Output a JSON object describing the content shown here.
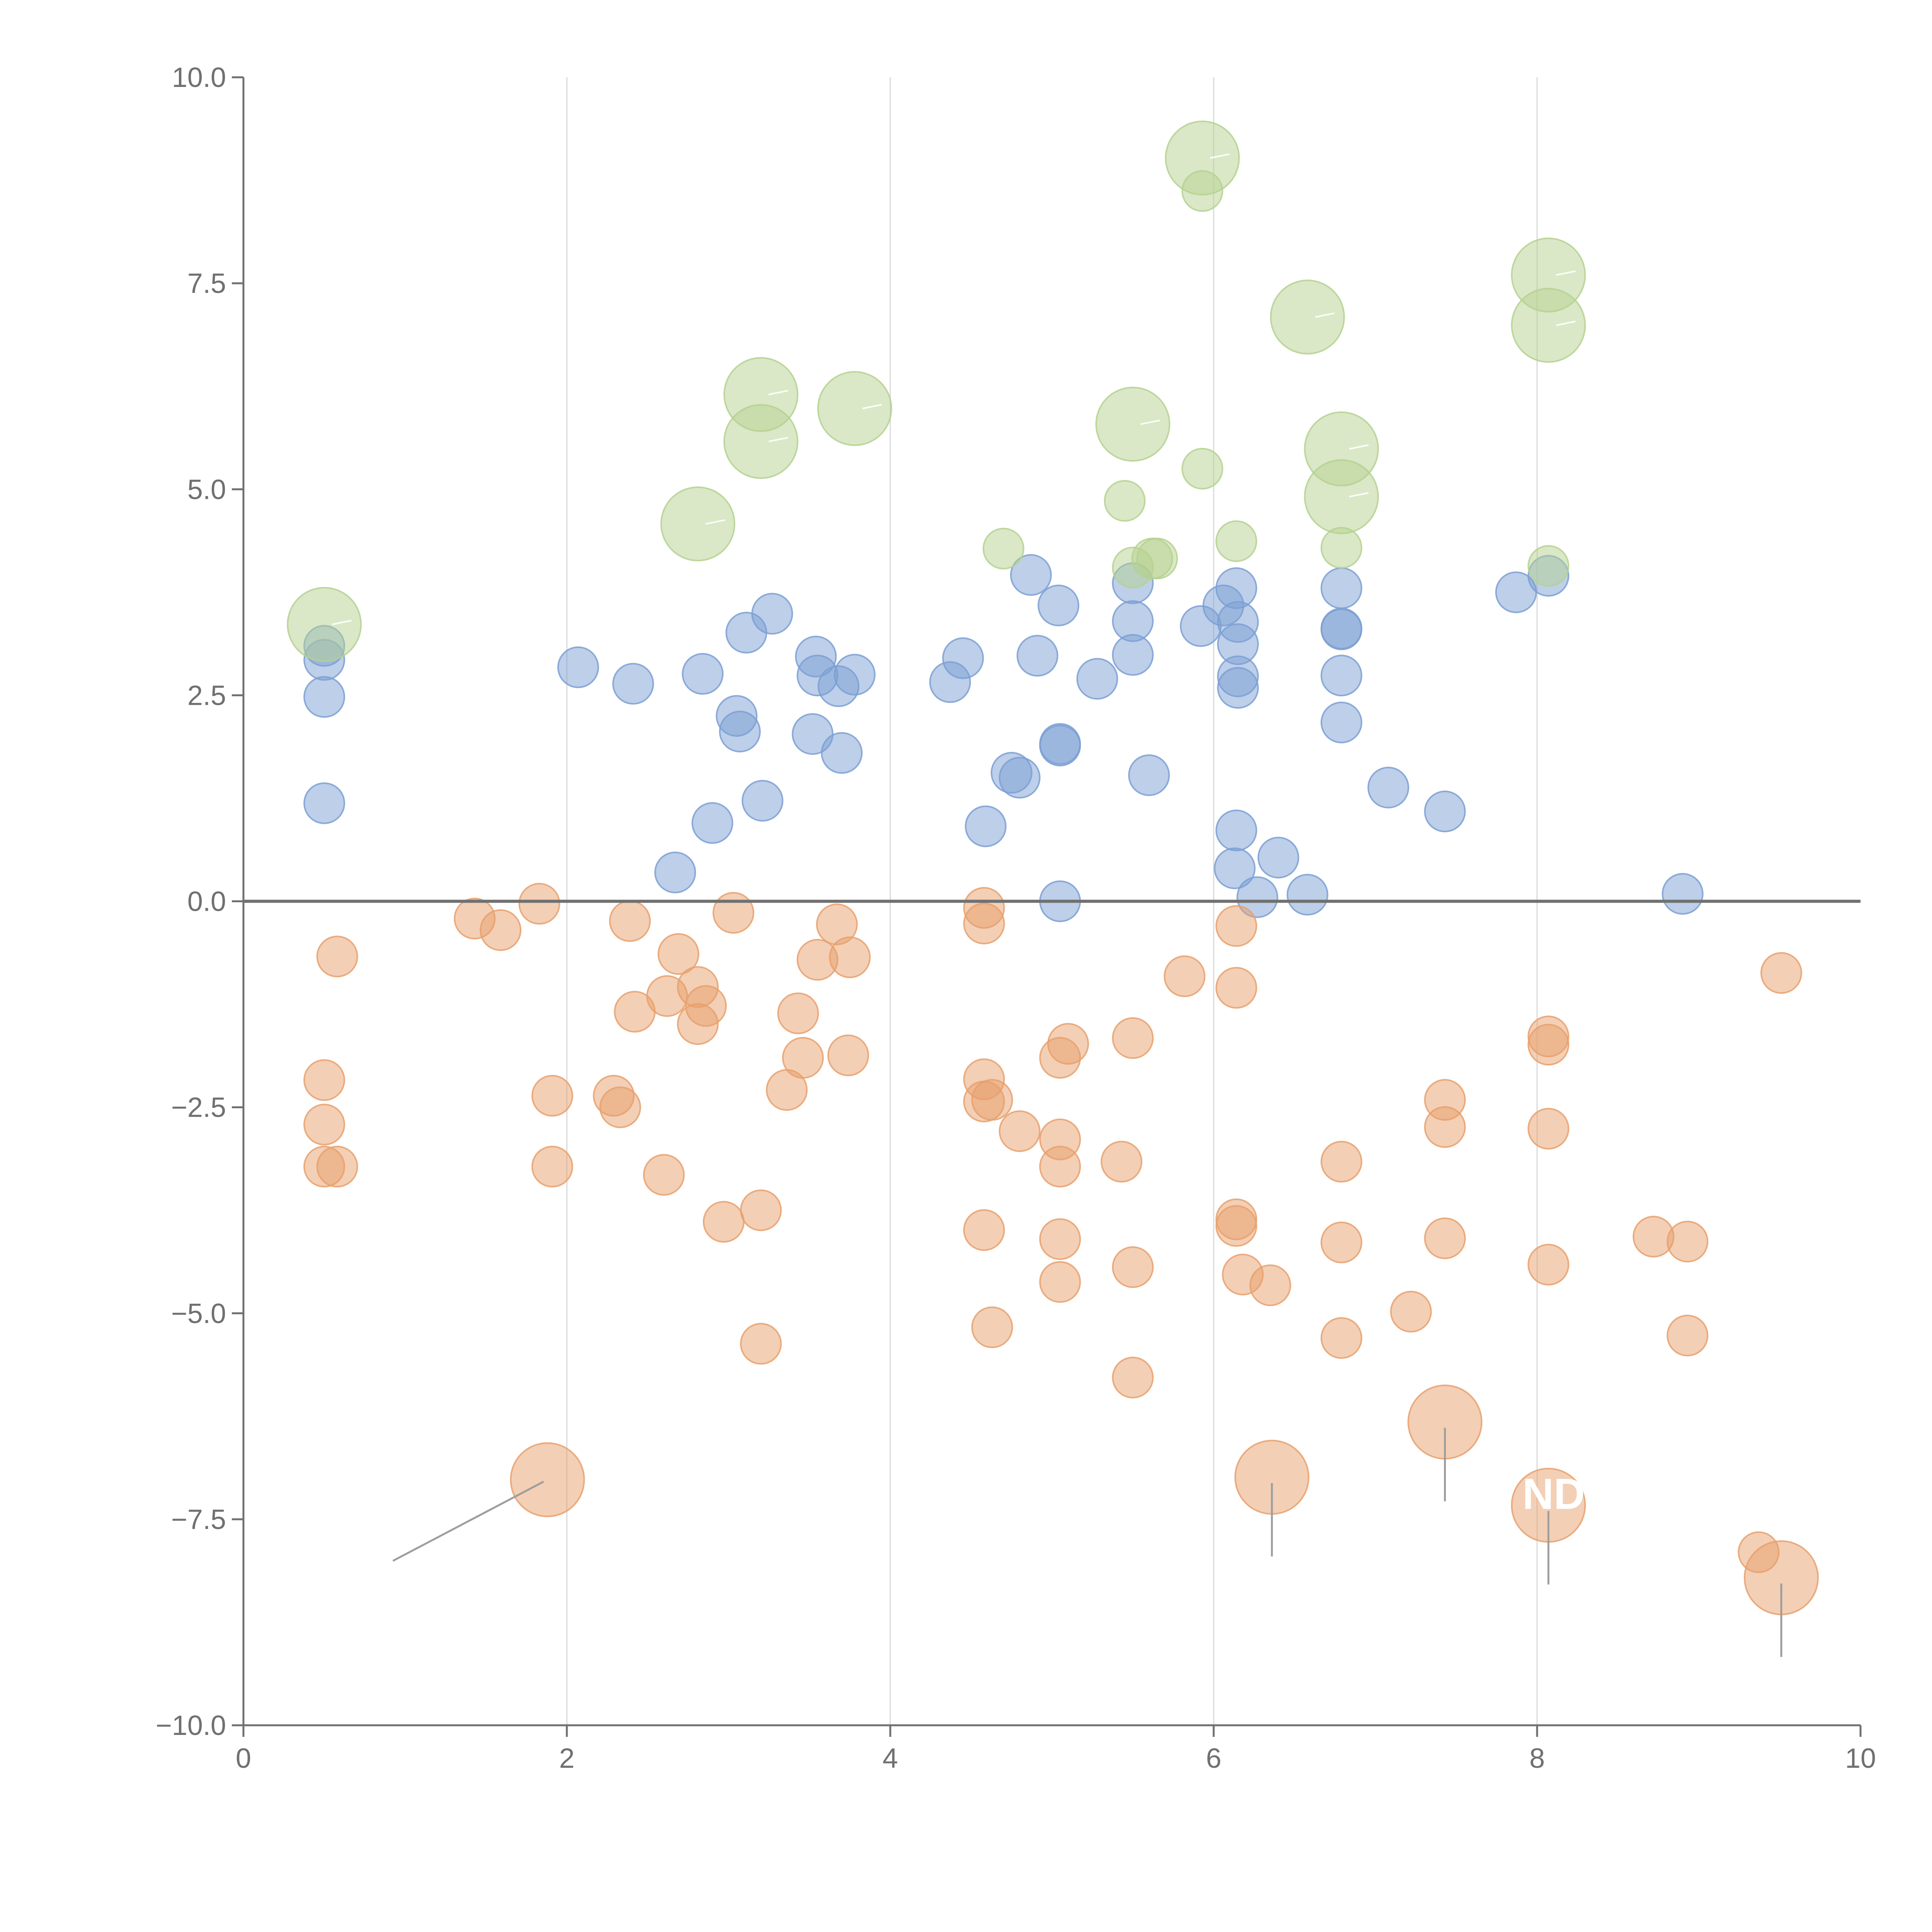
{
  "chart_data": {
    "type": "scatter",
    "title": "",
    "xlabel": "",
    "ylabel": "",
    "xlim": [
      0,
      10
    ],
    "ylim": [
      -10,
      10
    ],
    "x_ticks": [
      "0",
      "2",
      "4",
      "6",
      "8",
      "10"
    ],
    "y_ticks": [
      "10.0",
      "7.5",
      "5.0",
      "2.5",
      "0.0",
      "−2.5",
      "−5.0",
      "−7.5",
      "−10.0"
    ],
    "x_tick_values": [
      0,
      2,
      4,
      6,
      8,
      10
    ],
    "y_tick_values": [
      10,
      7.5,
      5,
      2.5,
      0,
      -2.5,
      -5,
      -7.5,
      -10
    ],
    "reference_line_y": 0,
    "vertical_gridlines": [
      2,
      4,
      6,
      8
    ],
    "colors": {
      "blue": "#7b9fd3",
      "orange": "#e8a06c",
      "green": "#b5d190",
      "axis": "#707070",
      "grid": "#d9d9d9",
      "leader": "#9e9e9e"
    },
    "series": [
      {
        "name": "blue",
        "color": "#7b9fd3",
        "size": "small",
        "points": [
          [
            0.5,
            3.1
          ],
          [
            0.5,
            2.93
          ],
          [
            0.5,
            2.48
          ],
          [
            0.5,
            1.19
          ],
          [
            2.07,
            2.84
          ],
          [
            2.41,
            2.64
          ],
          [
            2.67,
            0.35
          ],
          [
            2.84,
            2.76
          ],
          [
            2.9,
            0.95
          ],
          [
            3.05,
            2.25
          ],
          [
            3.07,
            2.06
          ],
          [
            3.11,
            3.26
          ],
          [
            3.21,
            1.22
          ],
          [
            3.27,
            3.49
          ],
          [
            3.52,
            2.03
          ],
          [
            3.54,
            2.97
          ],
          [
            3.55,
            2.74
          ],
          [
            3.68,
            2.61
          ],
          [
            3.7,
            1.8
          ],
          [
            3.78,
            2.75
          ],
          [
            4.37,
            2.66
          ],
          [
            4.45,
            2.95
          ],
          [
            4.59,
            0.91
          ],
          [
            4.75,
            1.56
          ],
          [
            4.8,
            1.5
          ],
          [
            4.87,
            3.96
          ],
          [
            4.91,
            2.98
          ],
          [
            5.04,
            3.59
          ],
          [
            5.05,
            1.91
          ],
          [
            5.05,
            1.89
          ],
          [
            5.05,
            0.0
          ],
          [
            5.28,
            2.7
          ],
          [
            5.5,
            3.86
          ],
          [
            5.5,
            3.4
          ],
          [
            5.5,
            2.99
          ],
          [
            5.6,
            1.53
          ],
          [
            5.92,
            3.34
          ],
          [
            6.06,
            3.59
          ],
          [
            6.14,
            3.8
          ],
          [
            6.15,
            3.39
          ],
          [
            6.15,
            3.12
          ],
          [
            6.15,
            2.73
          ],
          [
            6.15,
            2.59
          ],
          [
            6.14,
            0.86
          ],
          [
            6.13,
            0.4
          ],
          [
            6.27,
            0.05
          ],
          [
            6.4,
            0.53
          ],
          [
            6.58,
            0.08
          ],
          [
            6.79,
            3.8
          ],
          [
            6.79,
            3.31
          ],
          [
            6.79,
            3.3
          ],
          [
            6.79,
            2.74
          ],
          [
            6.79,
            2.17
          ],
          [
            7.08,
            1.38
          ],
          [
            7.43,
            1.09
          ],
          [
            7.87,
            3.75
          ],
          [
            8.07,
            3.95
          ],
          [
            8.9,
            0.09
          ]
        ]
      },
      {
        "name": "orange",
        "color": "#e8a06c",
        "size": "small",
        "points": [
          [
            0.5,
            -2.17
          ],
          [
            0.5,
            -2.71
          ],
          [
            0.5,
            -3.22
          ],
          [
            0.58,
            -3.22
          ],
          [
            0.58,
            -0.67
          ],
          [
            1.43,
            -0.21
          ],
          [
            1.59,
            -0.35
          ],
          [
            1.83,
            -0.03
          ],
          [
            1.91,
            -2.36
          ],
          [
            1.91,
            -3.22
          ],
          [
            2.29,
            -2.36
          ],
          [
            2.33,
            -2.5
          ],
          [
            2.39,
            -0.24
          ],
          [
            2.42,
            -1.34
          ],
          [
            2.6,
            -3.32
          ],
          [
            2.62,
            -1.15
          ],
          [
            2.69,
            -0.64
          ],
          [
            2.81,
            -1.04
          ],
          [
            2.81,
            -1.49
          ],
          [
            2.86,
            -1.27
          ],
          [
            2.97,
            -3.89
          ],
          [
            3.03,
            -0.14
          ],
          [
            3.2,
            -3.75
          ],
          [
            3.2,
            -5.37
          ],
          [
            3.36,
            -2.29
          ],
          [
            3.43,
            -1.36
          ],
          [
            3.46,
            -1.9
          ],
          [
            3.55,
            -0.71
          ],
          [
            3.67,
            -0.28
          ],
          [
            3.74,
            -1.87
          ],
          [
            3.75,
            -0.68
          ],
          [
            4.58,
            -0.08
          ],
          [
            4.58,
            -0.27
          ],
          [
            4.58,
            -2.16
          ],
          [
            4.58,
            -2.43
          ],
          [
            4.58,
            -3.99
          ],
          [
            4.63,
            -2.41
          ],
          [
            4.63,
            -5.17
          ],
          [
            4.8,
            -2.79
          ],
          [
            5.05,
            -1.9
          ],
          [
            5.05,
            -2.89
          ],
          [
            5.05,
            -3.22
          ],
          [
            5.05,
            -4.1
          ],
          [
            5.05,
            -4.62
          ],
          [
            5.1,
            -1.73
          ],
          [
            5.43,
            -3.16
          ],
          [
            5.5,
            -1.66
          ],
          [
            5.5,
            -4.44
          ],
          [
            5.5,
            -5.78
          ],
          [
            5.82,
            -0.91
          ],
          [
            6.14,
            -0.3
          ],
          [
            6.14,
            -1.05
          ],
          [
            6.14,
            -3.86
          ],
          [
            6.14,
            -3.94
          ],
          [
            6.18,
            -4.53
          ],
          [
            6.35,
            -4.66
          ],
          [
            6.79,
            -3.16
          ],
          [
            6.79,
            -4.14
          ],
          [
            6.79,
            -5.3
          ],
          [
            7.22,
            -4.98
          ],
          [
            7.43,
            -2.41
          ],
          [
            7.43,
            -2.74
          ],
          [
            7.43,
            -4.09
          ],
          [
            8.07,
            -1.64
          ],
          [
            8.07,
            -1.74
          ],
          [
            8.07,
            -2.76
          ],
          [
            8.07,
            -4.41
          ],
          [
            8.72,
            -4.07
          ],
          [
            8.93,
            -4.13
          ],
          [
            8.93,
            -5.27
          ],
          [
            9.37,
            -7.9
          ],
          [
            9.51,
            -0.87
          ]
        ]
      },
      {
        "name": "green",
        "color": "#b5d190",
        "size": "mixed",
        "points_small": [
          [
            5.93,
            8.62
          ],
          [
            5.93,
            5.25
          ],
          [
            5.45,
            4.86
          ],
          [
            4.7,
            4.28
          ],
          [
            5.5,
            4.05
          ],
          [
            5.62,
            4.16
          ],
          [
            5.65,
            4.16
          ],
          [
            6.14,
            4.37
          ],
          [
            6.79,
            4.29
          ],
          [
            8.07,
            4.07
          ]
        ],
        "points_large": [
          [
            5.93,
            9.02
          ],
          [
            8.07,
            7.6
          ],
          [
            6.58,
            7.09
          ],
          [
            8.07,
            6.99
          ],
          [
            3.2,
            6.15
          ],
          [
            3.78,
            5.98
          ],
          [
            3.2,
            5.58
          ],
          [
            5.5,
            5.79
          ],
          [
            6.79,
            5.49
          ],
          [
            6.79,
            4.91
          ],
          [
            2.81,
            4.58
          ],
          [
            0.5,
            3.36
          ]
        ]
      },
      {
        "name": "orange-large",
        "color": "#e8a06c",
        "size": "large",
        "points": [
          [
            1.88,
            -7.02
          ],
          [
            6.36,
            -6.99
          ],
          [
            7.43,
            -6.32
          ],
          [
            8.07,
            -7.33
          ],
          [
            9.51,
            -8.21
          ]
        ]
      }
    ],
    "overlay_text": "ND"
  }
}
